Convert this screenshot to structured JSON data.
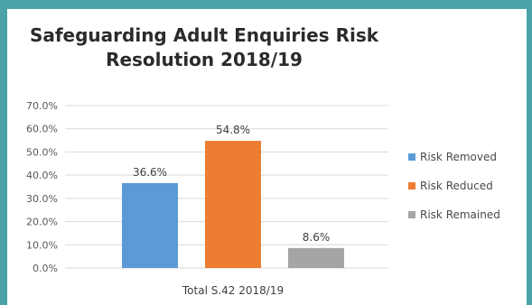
{
  "chart_data": {
    "type": "bar",
    "title_lines": [
      "Safeguarding Adult Enquiries Risk",
      "Resolution 2018/19"
    ],
    "categories": [
      "Total S.42 2018/19"
    ],
    "series": [
      {
        "name": "Risk Removed",
        "values": [
          36.6
        ],
        "label": "36.6%",
        "color": "#5b9bd5"
      },
      {
        "name": "Risk Reduced",
        "values": [
          54.8
        ],
        "label": "54.8%",
        "color": "#ed7d31"
      },
      {
        "name": "Risk Remained",
        "values": [
          8.6
        ],
        "label": "8.6%",
        "color": "#a5a5a5"
      }
    ],
    "y_ticks": [
      "0.0%",
      "10.0%",
      "20.0%",
      "30.0%",
      "40.0%",
      "50.0%",
      "60.0%",
      "70.0%"
    ],
    "ylim": [
      0,
      70
    ],
    "grid": true,
    "legend_position": "right"
  }
}
